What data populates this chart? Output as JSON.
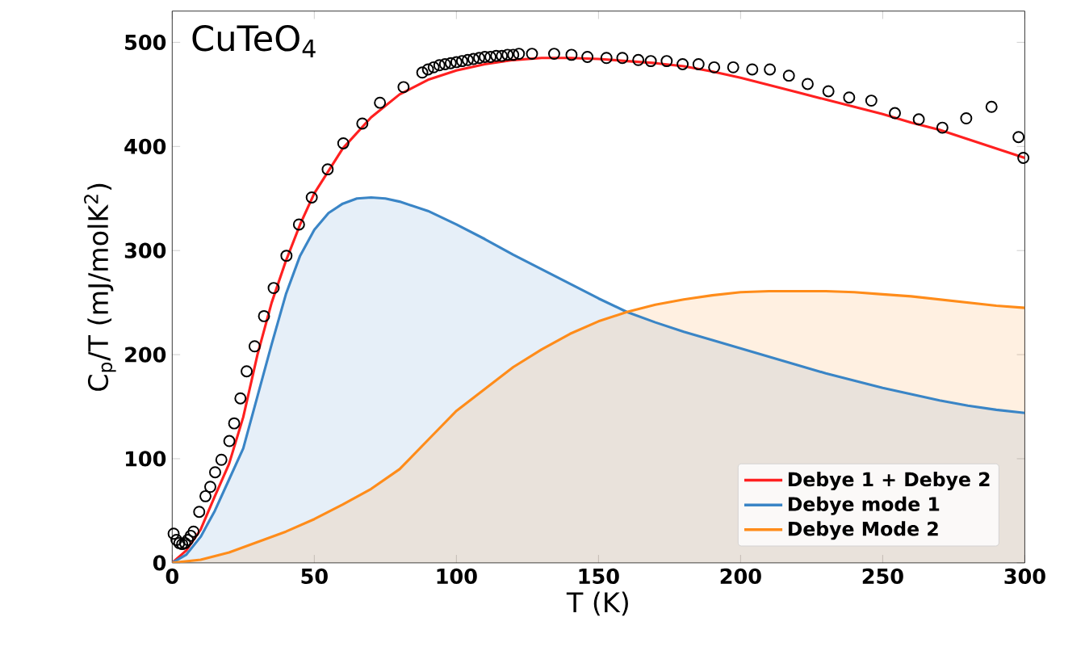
{
  "chart_data": {
    "type": "line",
    "title": "CuTeO$_{4}$",
    "xlabel": "T (K)",
    "ylabel": "C$_{p}$/T (mJ/molK$^{2}$)",
    "xlim": [
      0,
      300
    ],
    "ylim": [
      0,
      530
    ],
    "xticks": [
      0,
      50,
      100,
      150,
      200,
      250,
      300
    ],
    "yticks": [
      0,
      100,
      200,
      300,
      400,
      500
    ],
    "legend": "bottom right",
    "grid": false,
    "series": [
      {
        "name": "Debye 1 + Debye 2",
        "color": "#ff2020",
        "x": [
          0,
          5,
          10,
          15,
          20,
          25,
          30,
          35,
          40,
          45,
          50,
          60,
          70,
          80,
          90,
          100,
          110,
          120,
          130,
          140,
          150,
          160,
          170,
          180,
          190,
          200,
          210,
          220,
          230,
          240,
          250,
          260,
          270,
          280,
          290,
          300
        ],
        "values": [
          0,
          12,
          32,
          64,
          95,
          140,
          200,
          250,
          290,
          325,
          355,
          398,
          428,
          450,
          464,
          473,
          479,
          483,
          485,
          485,
          484,
          482,
          480,
          477,
          472,
          466,
          459,
          452,
          445,
          438,
          431,
          423,
          416,
          407,
          398,
          389
        ]
      },
      {
        "name": "Debye mode 1",
        "type": "area",
        "color": "#3a85c6",
        "x": [
          0,
          5,
          10,
          15,
          20,
          25,
          30,
          35,
          40,
          45,
          50,
          55,
          60,
          65,
          70,
          75,
          80,
          90,
          100,
          110,
          120,
          130,
          140,
          150,
          160,
          170,
          180,
          190,
          200,
          210,
          220,
          230,
          240,
          250,
          260,
          270,
          280,
          290,
          300
        ],
        "values": [
          0,
          8,
          25,
          50,
          80,
          110,
          160,
          210,
          258,
          295,
          320,
          336,
          345,
          350,
          351,
          350,
          347,
          338,
          325,
          311,
          296,
          282,
          268,
          254,
          241,
          231,
          222,
          214,
          206,
          198,
          190,
          182,
          175,
          168,
          162,
          156,
          151,
          147,
          144
        ]
      },
      {
        "name": "Debye Mode 2",
        "type": "area",
        "color": "#ff8c1a",
        "x": [
          0,
          10,
          20,
          30,
          40,
          50,
          60,
          70,
          80,
          90,
          100,
          110,
          120,
          130,
          140,
          150,
          160,
          170,
          180,
          190,
          200,
          210,
          220,
          230,
          240,
          250,
          260,
          270,
          280,
          290,
          300
        ],
        "values": [
          0,
          3,
          10,
          20,
          30,
          42,
          56,
          71,
          90,
          118,
          146,
          167,
          188,
          205,
          220,
          232,
          241,
          248,
          253,
          257,
          260,
          261,
          261,
          261,
          260,
          258,
          256,
          253,
          250,
          247,
          245
        ]
      },
      {
        "type": "scatter",
        "marker": "circle",
        "color": "#000000",
        "x": [
          0.5,
          1.5,
          2.5,
          3.5,
          4.5,
          5.5,
          6.5,
          7.5,
          9.5,
          11.7,
          13.4,
          15.1,
          17.3,
          20.1,
          21.8,
          24.0,
          26.2,
          29.0,
          32.3,
          35.7,
          40.2,
          44.6,
          49.1,
          54.7,
          60.2,
          66.9,
          73.1,
          81.4,
          88,
          90,
          92,
          94,
          96,
          98,
          100,
          102,
          104,
          106,
          108,
          110,
          112,
          114,
          116,
          118,
          120,
          122,
          126.6,
          134.4,
          140.5,
          146.1,
          152.8,
          158.4,
          164,
          168.4,
          174,
          179.6,
          185.2,
          190.7,
          197.4,
          204.1,
          210.3,
          217,
          223.6,
          230.9,
          238.2,
          246,
          254.3,
          262.7,
          271,
          279.4,
          288.3,
          297.8,
          299.5
        ],
        "values": [
          28,
          22,
          19,
          18,
          19,
          22,
          26,
          30,
          49,
          64,
          73,
          87,
          99,
          117,
          134,
          158,
          184,
          208,
          237,
          264,
          295,
          325,
          351,
          378,
          403,
          422,
          442,
          457,
          471,
          474,
          476,
          478,
          479,
          480,
          481,
          482,
          483,
          484,
          485,
          486,
          486,
          487,
          487,
          488,
          488,
          489,
          489,
          489,
          488,
          486,
          485,
          485,
          483,
          482,
          482,
          479,
          479,
          476,
          476,
          474,
          474,
          468,
          460,
          453,
          447,
          444,
          432,
          426,
          418,
          427,
          438,
          409,
          389
        ]
      }
    ]
  }
}
